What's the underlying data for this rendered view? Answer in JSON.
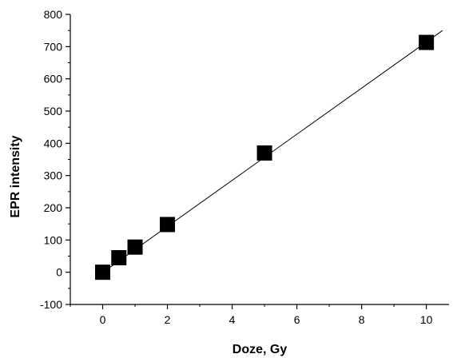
{
  "chart_data": {
    "type": "scatter",
    "title": "",
    "xlabel": "Doze, Gy",
    "ylabel": "EPR intensity",
    "xlim": [
      -1,
      10.7
    ],
    "ylim": [
      -100,
      800
    ],
    "x_ticks": [
      0,
      2,
      4,
      6,
      8,
      10
    ],
    "y_ticks": [
      -100,
      0,
      100,
      200,
      300,
      400,
      500,
      600,
      700,
      800
    ],
    "grid": false,
    "legend": "none",
    "series": [
      {
        "marker": "square",
        "color": "#000000",
        "x": [
          0,
          0.5,
          1,
          2,
          5,
          10
        ],
        "y": [
          0,
          45,
          78,
          148,
          370,
          713
        ]
      }
    ],
    "fit_line": {
      "color": "#000000",
      "x": [
        0,
        10.5
      ],
      "y": [
        -1,
        750
      ]
    }
  }
}
